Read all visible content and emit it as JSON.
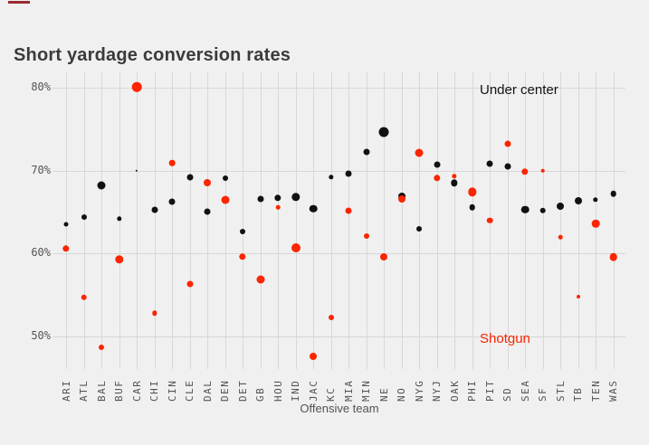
{
  "colors": {
    "background": "#f0f0f0",
    "gridline": "#d8d8d8",
    "under_center": "#111111",
    "shotgun": "#fb2500",
    "title_text": "#3b3b3b",
    "tick_text": "#545454",
    "artifact_bar": "#9c2a33"
  },
  "chart_data": {
    "type": "scatter",
    "title": "Short yardage conversion rates",
    "xlabel": "Offensive team",
    "ylabel": "",
    "grid": true,
    "legend_position": "inside-right",
    "y_ticks": [
      {
        "label": "80%",
        "value": 80
      },
      {
        "label": "70%",
        "value": 70
      },
      {
        "label": "60%",
        "value": 60
      },
      {
        "label": "50%",
        "value": 50
      }
    ],
    "ylim": [
      46,
      82
    ],
    "categories": [
      "ARI",
      "ATL",
      "BAL",
      "BUF",
      "CAR",
      "CHI",
      "CIN",
      "CLE",
      "DAL",
      "DEN",
      "DET",
      "GB",
      "HOU",
      "IND",
      "JAC",
      "KC",
      "MIA",
      "MIN",
      "NE",
      "NO",
      "NYG",
      "NYJ",
      "OAK",
      "PHI",
      "PIT",
      "SD",
      "SEA",
      "SF",
      "STL",
      "TB",
      "TEN",
      "WAS"
    ],
    "series": [
      {
        "name": "Under center",
        "color": "#111111",
        "values": [
          63.5,
          64.4,
          68.2,
          64.2,
          70.0,
          65.3,
          66.3,
          69.2,
          65.1,
          69.1,
          62.7,
          66.6,
          66.7,
          66.8,
          65.4,
          69.2,
          69.6,
          72.3,
          74.6,
          66.9,
          63.0,
          70.7,
          68.5,
          65.6,
          70.8,
          70.5,
          65.3,
          65.2,
          65.7,
          66.4,
          66.5,
          67.2
        ],
        "radii": [
          2.5,
          3.0,
          4.5,
          2.7,
          1.2,
          3.5,
          3.5,
          3.5,
          3.5,
          3.0,
          3.0,
          3.5,
          3.7,
          4.7,
          4.3,
          2.7,
          3.5,
          3.5,
          5.5,
          4.0,
          3.0,
          3.5,
          3.7,
          3.3,
          3.5,
          3.5,
          4.3,
          3.3,
          4.0,
          4.0,
          2.7,
          3.3
        ]
      },
      {
        "name": "Shotgun",
        "color": "#fb2500",
        "values": [
          60.6,
          54.7,
          48.7,
          59.3,
          80.1,
          52.8,
          70.9,
          56.3,
          68.5,
          66.5,
          59.6,
          56.9,
          65.6,
          60.7,
          47.6,
          52.3,
          65.2,
          62.1,
          59.6,
          66.6,
          72.1,
          69.1,
          69.3,
          67.4,
          64.0,
          73.2,
          69.9,
          70.0,
          62.0,
          54.8,
          63.6,
          59.6
        ],
        "radii": [
          3.7,
          3.3,
          3.0,
          4.7,
          5.3,
          2.7,
          3.3,
          3.5,
          4.0,
          4.5,
          3.7,
          4.5,
          2.3,
          5.0,
          4.0,
          3.0,
          3.5,
          3.0,
          4.0,
          4.0,
          4.5,
          3.7,
          2.7,
          4.7,
          3.3,
          3.5,
          3.7,
          2.3,
          2.3,
          2.0,
          4.3,
          4.3
        ]
      }
    ],
    "annotations": [
      {
        "text": "Under center",
        "color": "#141414",
        "x": 530,
        "y": 91
      },
      {
        "text": "Shotgun",
        "color": "#fb2500",
        "x": 530,
        "y": 366
      }
    ]
  }
}
